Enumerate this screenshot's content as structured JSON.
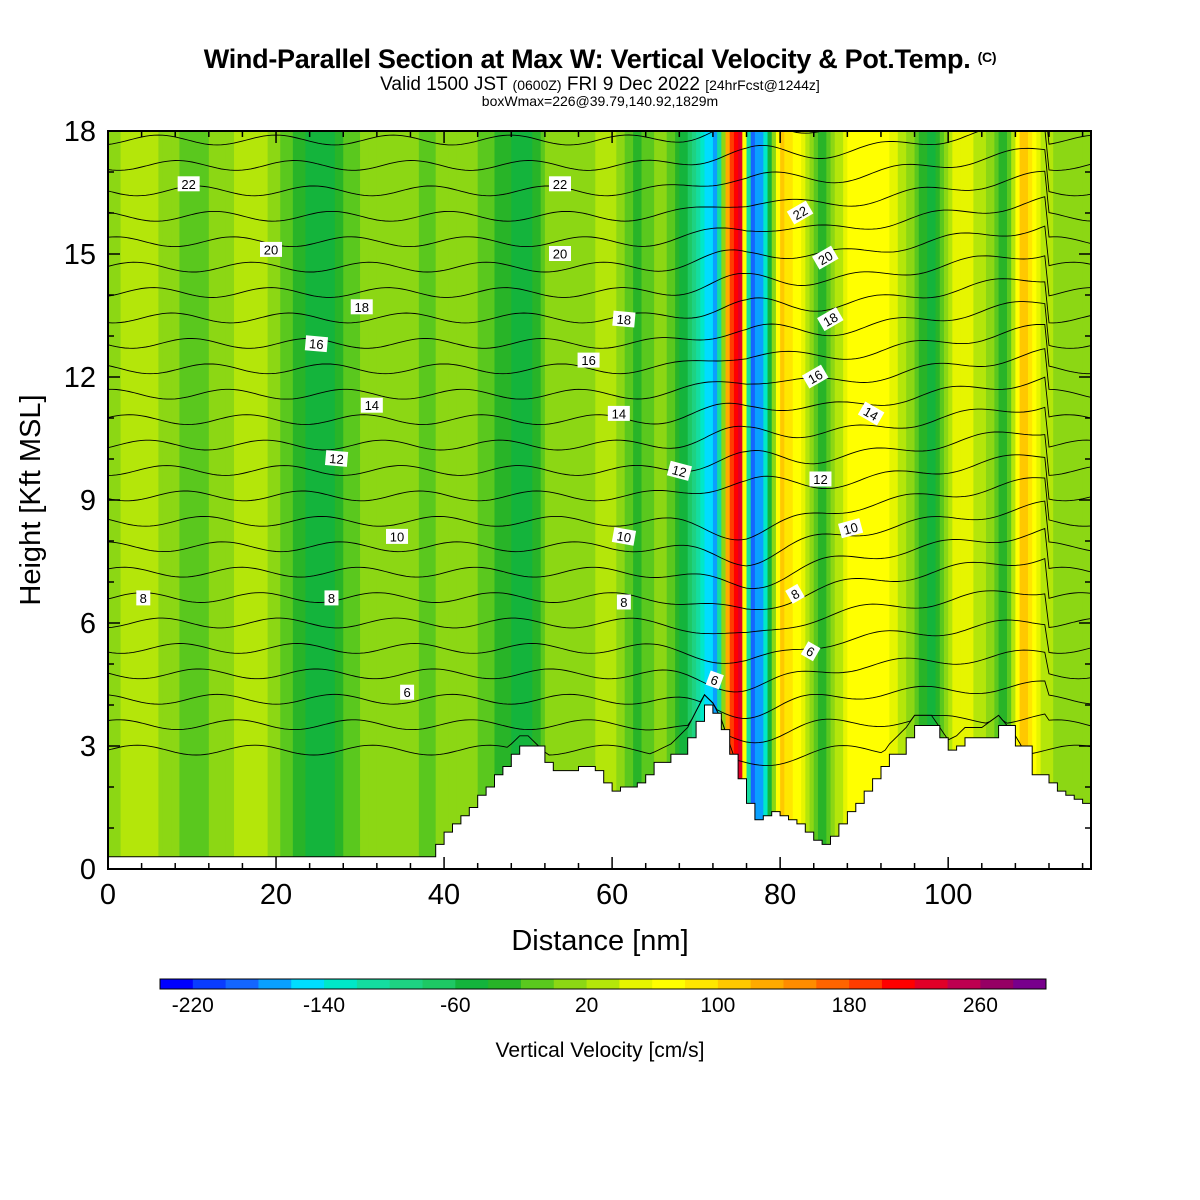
{
  "header": {
    "title": "Wind-Parallel Section at Max W: Vertical Velocity & Pot.Temp.",
    "copyright": "(C)",
    "subtitle_valid": "Valid 1500 JST",
    "subtitle_z": "(0600Z)",
    "subtitle_date": "FRI 9 Dec 2022",
    "subtitle_fcst": "[24hrFcst@1244z]",
    "subtitle2": "boxWmax=226@39.79,140.92,1829m"
  },
  "chart_data": {
    "type": "heatmap",
    "title": "Wind-Parallel Section at Max W: Vertical Velocity & Pot.Temp.",
    "xlabel": "Distance [nm]",
    "ylabel": "Height [Kft MSL]",
    "xlim": [
      0,
      117
    ],
    "ylim": [
      0,
      18
    ],
    "x_ticks": [
      "0",
      "20",
      "40",
      "60",
      "80",
      "100"
    ],
    "y_ticks": [
      "0",
      "3",
      "6",
      "9",
      "12",
      "15",
      "18"
    ],
    "colorbar": {
      "label": "Vertical Velocity [cm/s]",
      "tick_labels": [
        "-220",
        "-140",
        "-60",
        "20",
        "100",
        "180",
        "260"
      ],
      "min": -240,
      "max": 300,
      "step": 20,
      "colors": [
        "#0000ff",
        "#0a3cff",
        "#1466ff",
        "#0aa0ff",
        "#00ddff",
        "#00e8c8",
        "#14dca0",
        "#1ed282",
        "#1ec864",
        "#14b43c",
        "#28b428",
        "#5ac81e",
        "#8cd714",
        "#b4e60a",
        "#e6f500",
        "#ffff00",
        "#ffe600",
        "#ffc800",
        "#ffaa00",
        "#ff8c00",
        "#ff6400",
        "#ff3c00",
        "#ff0000",
        "#e10028",
        "#be0050",
        "#960064",
        "#78008c"
      ]
    },
    "velocity_profile": {
      "x_nm": [
        0,
        3,
        6,
        10,
        14,
        17,
        20,
        24,
        26,
        28,
        31,
        35,
        38,
        40,
        43,
        46,
        50,
        53,
        56,
        60,
        63,
        66,
        69,
        71,
        72.5,
        74,
        75.3,
        76.5,
        78,
        80,
        82,
        85,
        88,
        92,
        95,
        98,
        101,
        104,
        107,
        109,
        111,
        114,
        117
      ],
      "w_cms": [
        10,
        30,
        20,
        -10,
        10,
        40,
        10,
        -50,
        -60,
        -20,
        10,
        20,
        -10,
        10,
        10,
        -20,
        -60,
        20,
        10,
        30,
        -30,
        10,
        -60,
        -140,
        -180,
        180,
        240,
        -200,
        -160,
        110,
        70,
        -30,
        60,
        80,
        20,
        -50,
        60,
        30,
        -40,
        120,
        40,
        0,
        20
      ]
    },
    "theta_contour_labels": [
      {
        "x": 9.6,
        "y": 16.7,
        "v": "22",
        "a": 0
      },
      {
        "x": 53.8,
        "y": 16.7,
        "v": "22",
        "a": 0
      },
      {
        "x": 82.4,
        "y": 16.0,
        "v": "22",
        "a": -30
      },
      {
        "x": 19.4,
        "y": 15.1,
        "v": "20",
        "a": 0
      },
      {
        "x": 53.8,
        "y": 15.0,
        "v": "20",
        "a": 0
      },
      {
        "x": 85.4,
        "y": 14.9,
        "v": "20",
        "a": -30
      },
      {
        "x": 30.2,
        "y": 13.7,
        "v": "18",
        "a": 0
      },
      {
        "x": 61.4,
        "y": 13.4,
        "v": "18",
        "a": 5
      },
      {
        "x": 86.0,
        "y": 13.4,
        "v": "18",
        "a": -30
      },
      {
        "x": 24.8,
        "y": 12.8,
        "v": "16",
        "a": 5
      },
      {
        "x": 57.2,
        "y": 12.4,
        "v": "16",
        "a": 0
      },
      {
        "x": 84.2,
        "y": 12.0,
        "v": "16",
        "a": -30
      },
      {
        "x": 31.4,
        "y": 11.3,
        "v": "14",
        "a": 0
      },
      {
        "x": 60.8,
        "y": 11.1,
        "v": "14",
        "a": 0
      },
      {
        "x": 90.8,
        "y": 11.1,
        "v": "14",
        "a": 30
      },
      {
        "x": 27.2,
        "y": 10.0,
        "v": "12",
        "a": 5
      },
      {
        "x": 68.0,
        "y": 9.7,
        "v": "12",
        "a": 15
      },
      {
        "x": 84.8,
        "y": 9.5,
        "v": "12",
        "a": 0
      },
      {
        "x": 34.4,
        "y": 8.1,
        "v": "10",
        "a": 0
      },
      {
        "x": 61.4,
        "y": 8.1,
        "v": "10",
        "a": 10
      },
      {
        "x": 88.4,
        "y": 8.3,
        "v": "10",
        "a": -15
      },
      {
        "x": 4.2,
        "y": 6.6,
        "v": "8",
        "a": 0
      },
      {
        "x": 26.6,
        "y": 6.6,
        "v": "8",
        "a": 0
      },
      {
        "x": 61.4,
        "y": 6.5,
        "v": "8",
        "a": 0
      },
      {
        "x": 81.8,
        "y": 6.7,
        "v": "8",
        "a": -30
      },
      {
        "x": 35.6,
        "y": 4.3,
        "v": "6",
        "a": 0
      },
      {
        "x": 72.2,
        "y": 4.6,
        "v": "6",
        "a": 20
      },
      {
        "x": 83.6,
        "y": 5.3,
        "v": "6",
        "a": 30
      }
    ],
    "terrain": {
      "x_nm": [
        0,
        38,
        39,
        40,
        41,
        42,
        43,
        44,
        45,
        46,
        47,
        48,
        49,
        50,
        52,
        53,
        54,
        55,
        56,
        58,
        59,
        60,
        61,
        63,
        64,
        65,
        67,
        69,
        70,
        71,
        72,
        73,
        74,
        75,
        76,
        77,
        78,
        79,
        80,
        81,
        82,
        83,
        84,
        85,
        86,
        87,
        88,
        89,
        90,
        91,
        92,
        93,
        95,
        96,
        98,
        99,
        100,
        101,
        102,
        104,
        106,
        108,
        110,
        112,
        113,
        114,
        115,
        116,
        117
      ],
      "h_kft": [
        0.3,
        0.3,
        0.6,
        0.9,
        1.1,
        1.3,
        1.5,
        1.8,
        2.0,
        2.3,
        2.5,
        2.8,
        3.0,
        3.0,
        2.6,
        2.4,
        2.4,
        2.4,
        2.5,
        2.4,
        2.1,
        1.9,
        2.0,
        2.1,
        2.3,
        2.6,
        2.8,
        3.2,
        3.6,
        4.0,
        3.8,
        3.4,
        2.8,
        2.2,
        1.6,
        1.2,
        1.3,
        1.4,
        1.3,
        1.2,
        1.1,
        0.9,
        0.7,
        0.6,
        0.8,
        1.1,
        1.4,
        1.6,
        1.9,
        2.2,
        2.5,
        2.8,
        3.2,
        3.5,
        3.5,
        3.2,
        2.9,
        3.0,
        3.2,
        3.2,
        3.5,
        3.0,
        2.3,
        2.1,
        1.9,
        1.8,
        1.7,
        1.6,
        1.6
      ]
    }
  }
}
